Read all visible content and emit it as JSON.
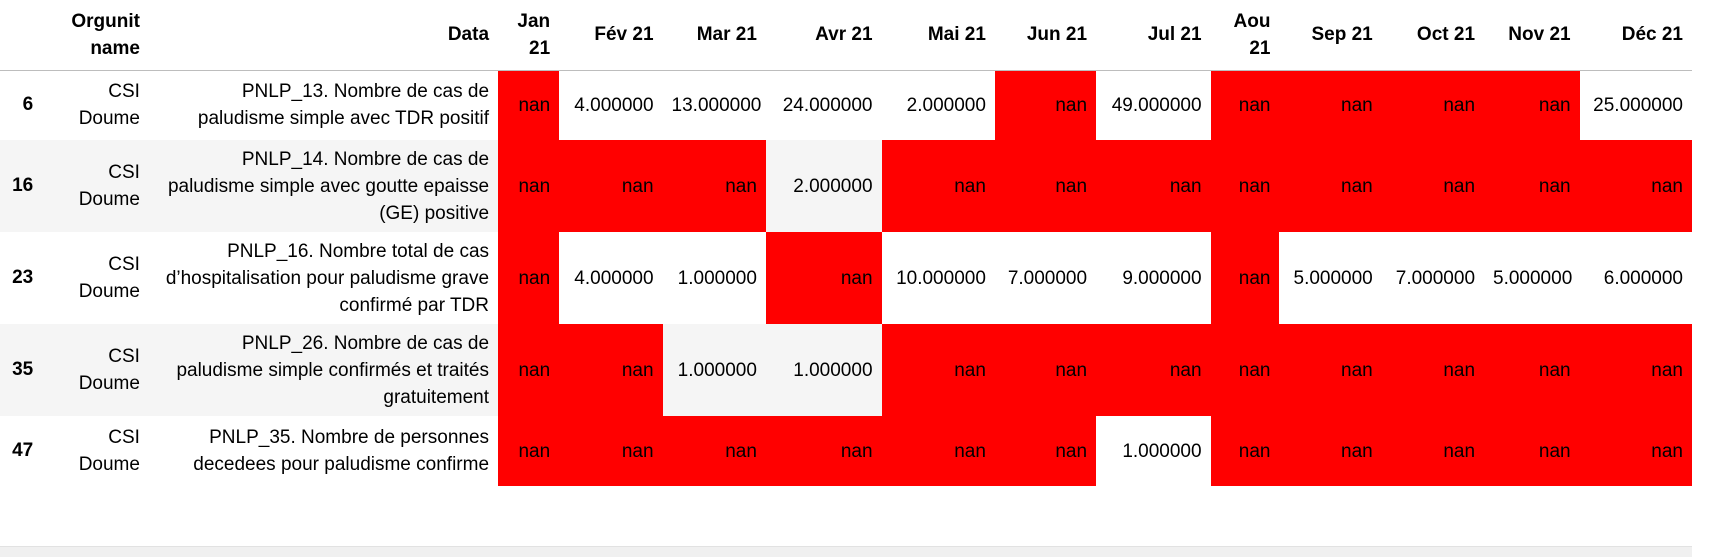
{
  "table": {
    "headers": [
      "",
      "Orgunit name",
      "Data",
      "Jan 21",
      "Fév 21",
      "Mar 21",
      "Avr 21",
      "Mai 21",
      "Jun 21",
      "Jul 21",
      "Aou 21",
      "Sep 21",
      "Oct 21",
      "Nov 21",
      "Déc 21"
    ],
    "rows": [
      {
        "index": "6",
        "orgunit": "CSI Doume",
        "data": "PNLP_13. Nombre de cas de paludisme simple avec TDR positif",
        "values": [
          "nan",
          "4.000000",
          "13.000000",
          "24.000000",
          "2.000000",
          "nan",
          "49.000000",
          "nan",
          "nan",
          "nan",
          "nan",
          "25.000000"
        ]
      },
      {
        "index": "16",
        "orgunit": "CSI Doume",
        "data": "PNLP_14. Nombre de cas de paludisme simple avec goutte epaisse (GE) positive",
        "values": [
          "nan",
          "nan",
          "nan",
          "2.000000",
          "nan",
          "nan",
          "nan",
          "nan",
          "nan",
          "nan",
          "nan",
          "nan"
        ]
      },
      {
        "index": "23",
        "orgunit": "CSI Doume",
        "data": "PNLP_16. Nombre total de cas d’hospitalisation pour paludisme grave confirmé par TDR",
        "values": [
          "nan",
          "4.000000",
          "1.000000",
          "nan",
          "10.000000",
          "7.000000",
          "9.000000",
          "nan",
          "5.000000",
          "7.000000",
          "5.000000",
          "6.000000"
        ]
      },
      {
        "index": "35",
        "orgunit": "CSI Doume",
        "data": "PNLP_26. Nombre de cas de paludisme simple confirmés et traités gratuitement",
        "values": [
          "nan",
          "nan",
          "1.000000",
          "1.000000",
          "nan",
          "nan",
          "nan",
          "nan",
          "nan",
          "nan",
          "nan",
          "nan"
        ]
      },
      {
        "index": "47",
        "orgunit": "CSI Doume",
        "data": "PNLP_35. Nombre de personnes decedees pour paludisme confirme",
        "values": [
          "nan",
          "nan",
          "nan",
          "nan",
          "nan",
          "nan",
          "1.000000",
          "nan",
          "nan",
          "nan",
          "nan",
          "nan"
        ]
      }
    ],
    "highlight_color": "#ff0000"
  }
}
